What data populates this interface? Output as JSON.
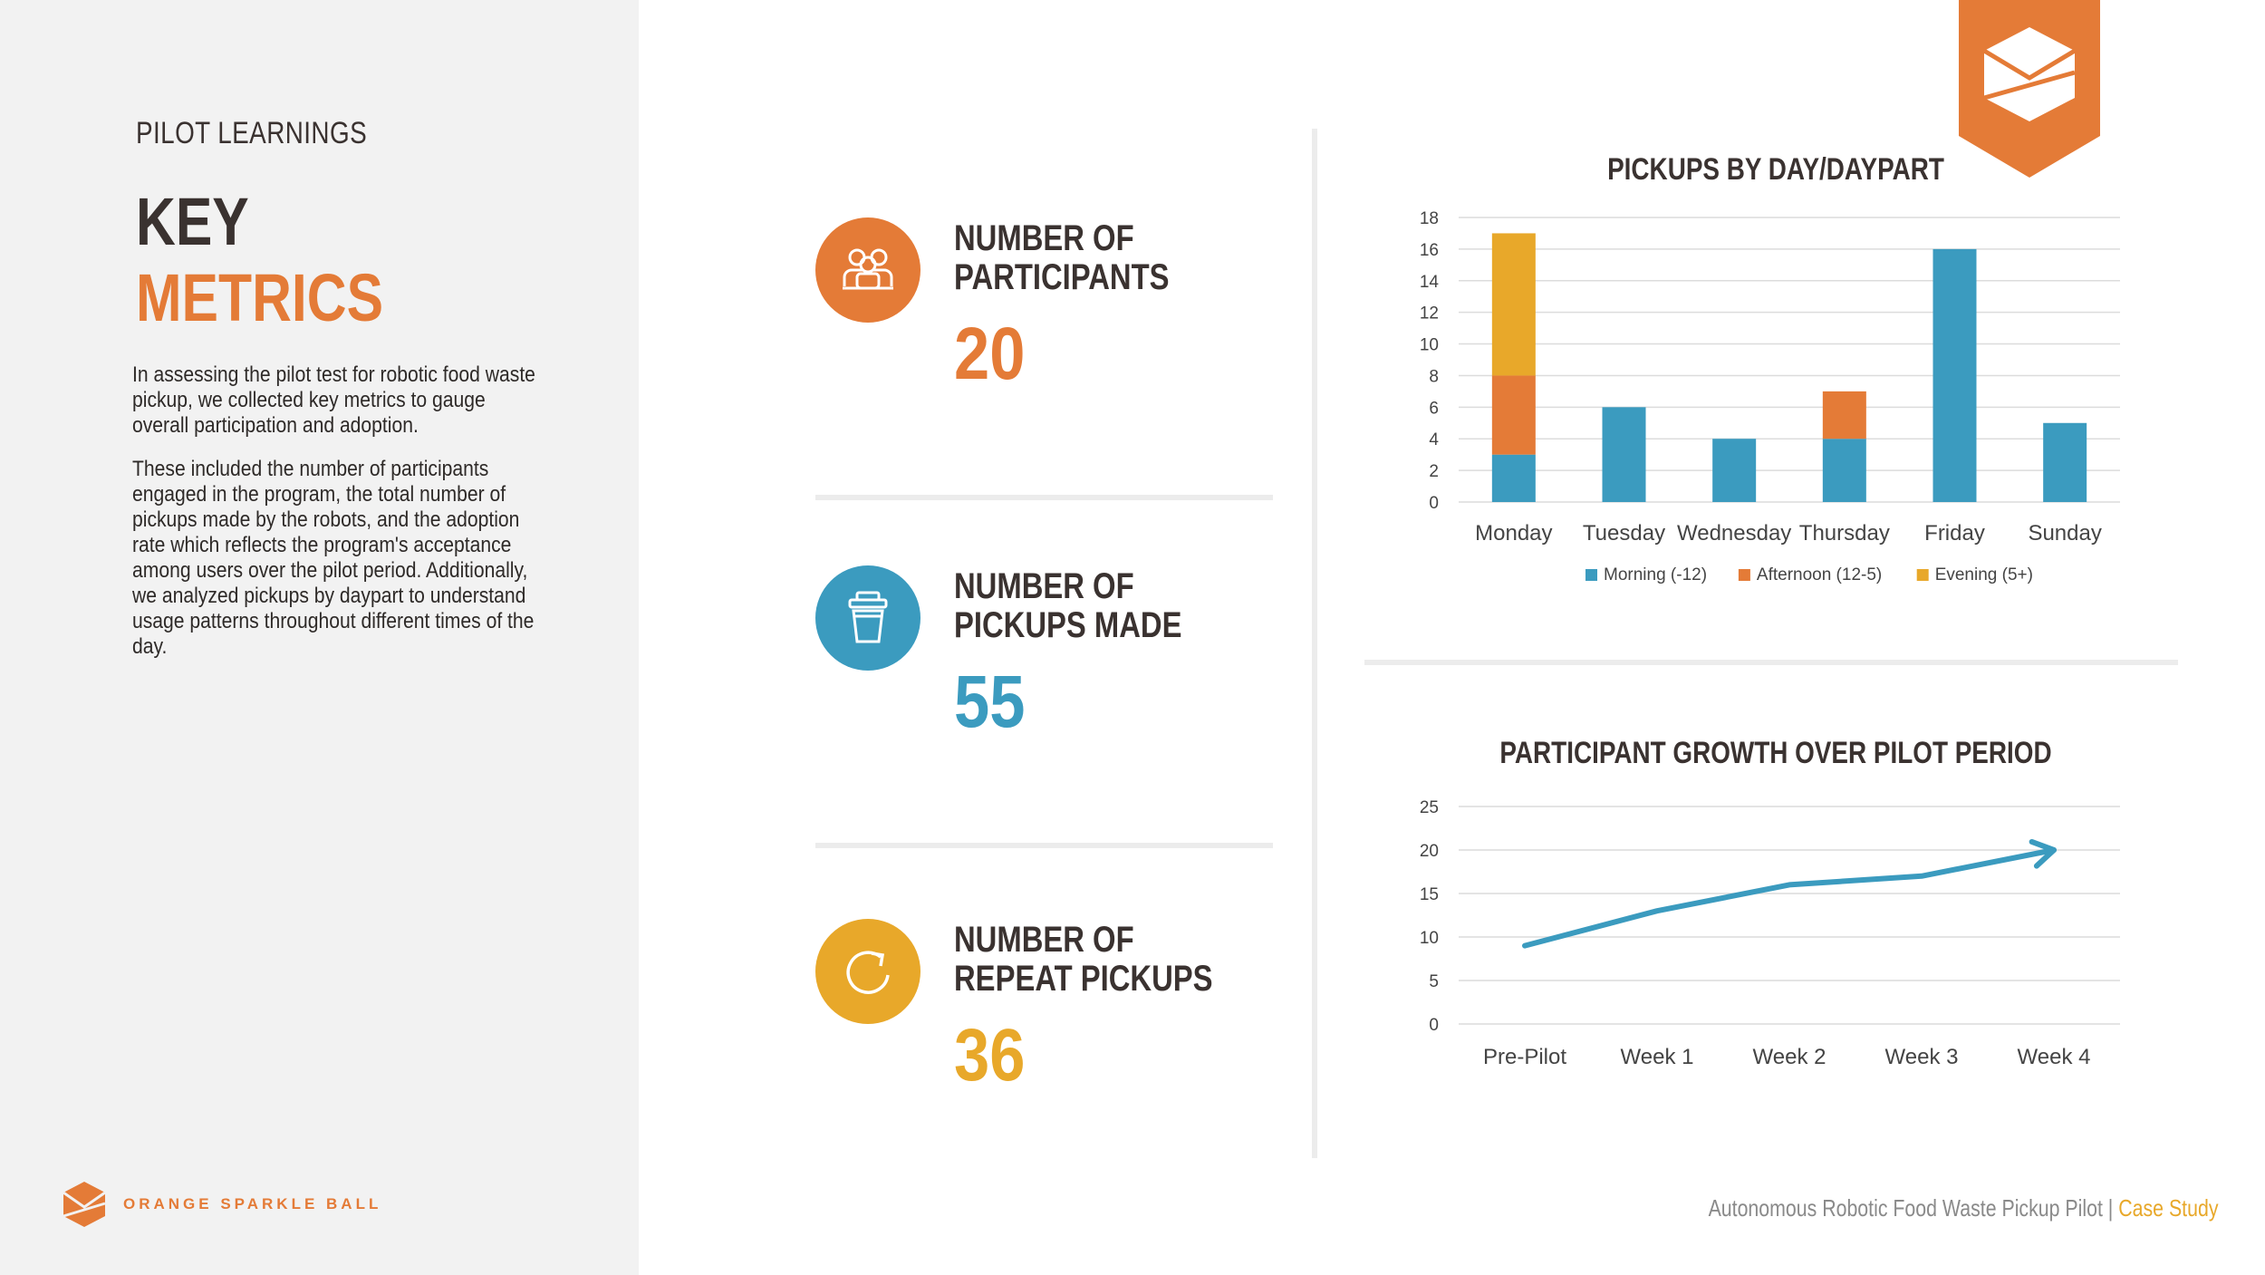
{
  "colors": {
    "orange": "#e47b37",
    "blue": "#3b9bbf",
    "yellow": "#e8a82a",
    "dark": "#3a3230"
  },
  "sidebar": {
    "section_label": "PILOT LEARNINGS",
    "title_line1": "KEY",
    "title_line2": "METRICS",
    "paragraph1": "In assessing the pilot test for robotic food waste pickup, we collected key metrics to gauge overall participation and adoption.",
    "paragraph2": "These included the number of participants engaged in the program, the total number of pickups made by the robots, and the adoption rate which reflects the program's acceptance among users over the pilot period. Additionally, we analyzed pickups by daypart to understand usage patterns throughout different times of the day.",
    "brand": "ORANGE SPARKLE BALL"
  },
  "metrics": [
    {
      "label_line1": "NUMBER OF",
      "label_line2": "PARTICIPANTS",
      "value": "20",
      "icon": "group-icon"
    },
    {
      "label_line1": "NUMBER OF",
      "label_line2": "PICKUPS MADE",
      "value": "55",
      "icon": "bin-icon"
    },
    {
      "label_line1": "NUMBER OF",
      "label_line2": "REPEAT PICKUPS",
      "value": "36",
      "icon": "refresh-icon"
    }
  ],
  "footer": {
    "main": "Autonomous Robotic Food Waste Pickup Pilot |",
    "accent": " Case Study"
  },
  "chart_data": [
    {
      "type": "bar",
      "stacked": true,
      "title": "PICKUPS BY DAY/DAYPART",
      "categories": [
        "Monday",
        "Tuesday",
        "Wednesday",
        "Thursday",
        "Friday",
        "Sunday"
      ],
      "series": [
        {
          "name": "Morning (-12)",
          "values": [
            3,
            6,
            4,
            4,
            16,
            5
          ]
        },
        {
          "name": "Afternoon (12-5)",
          "values": [
            5,
            0,
            0,
            3,
            0,
            0
          ]
        },
        {
          "name": "Evening (5+)",
          "values": [
            9,
            0,
            0,
            0,
            0,
            0
          ]
        }
      ],
      "yticks": [
        "0",
        "2",
        "4",
        "6",
        "8",
        "10",
        "12",
        "14",
        "16",
        "18"
      ],
      "ylim": [
        0,
        18
      ],
      "grid": true,
      "legend": "bottom"
    },
    {
      "type": "line",
      "title": "PARTICIPANT GROWTH OVER PILOT PERIOD",
      "categories": [
        "Pre-Pilot",
        "Week 1",
        "Week 2",
        "Week 3",
        "Week 4"
      ],
      "series": [
        {
          "name": "Participants",
          "values": [
            9,
            13,
            16,
            17,
            20
          ]
        }
      ],
      "yticks": [
        "0",
        "5",
        "10",
        "15",
        "20",
        "25"
      ],
      "ylim": [
        0,
        25
      ],
      "grid": true
    }
  ]
}
